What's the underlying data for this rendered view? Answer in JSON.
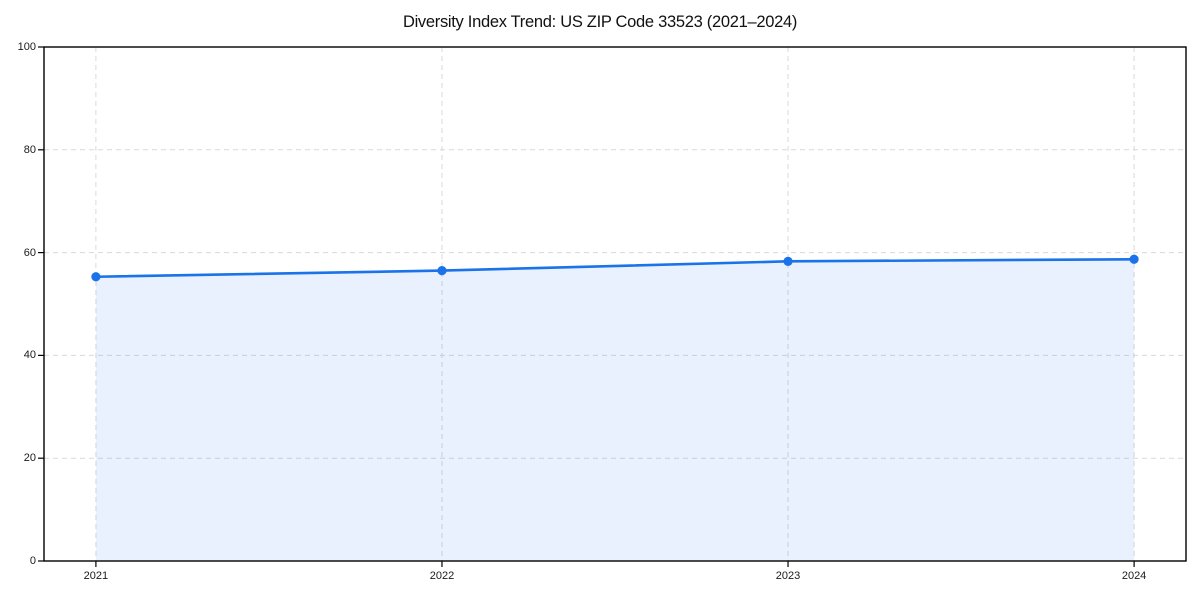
{
  "chart_data": {
    "type": "area",
    "title": "Diversity Index Trend: US ZIP Code 33523 (2021–2024)",
    "series_name": "Diversity Index",
    "x": [
      2021,
      2022,
      2023,
      2024
    ],
    "x_tick_labels": [
      "2021",
      "2022",
      "2023",
      "2024"
    ],
    "values": [
      55.3,
      56.5,
      58.3,
      58.7
    ],
    "xlabel": "",
    "ylabel": "",
    "xlim": [
      2020.85,
      2024.15
    ],
    "ylim": [
      0,
      100
    ],
    "y_ticks": [
      0,
      20,
      40,
      60,
      80,
      100
    ],
    "grid": true,
    "grid_style": "dashed",
    "legend_position": "none",
    "colors": {
      "line": "#1a73e8",
      "marker": "#1a73e8",
      "fill": "#1a73e8",
      "fill_opacity": 0.1,
      "grid": "#d9d9d9",
      "spine": "#000000",
      "tick_text": "#1a1a1a",
      "background": "#ffffff"
    }
  }
}
